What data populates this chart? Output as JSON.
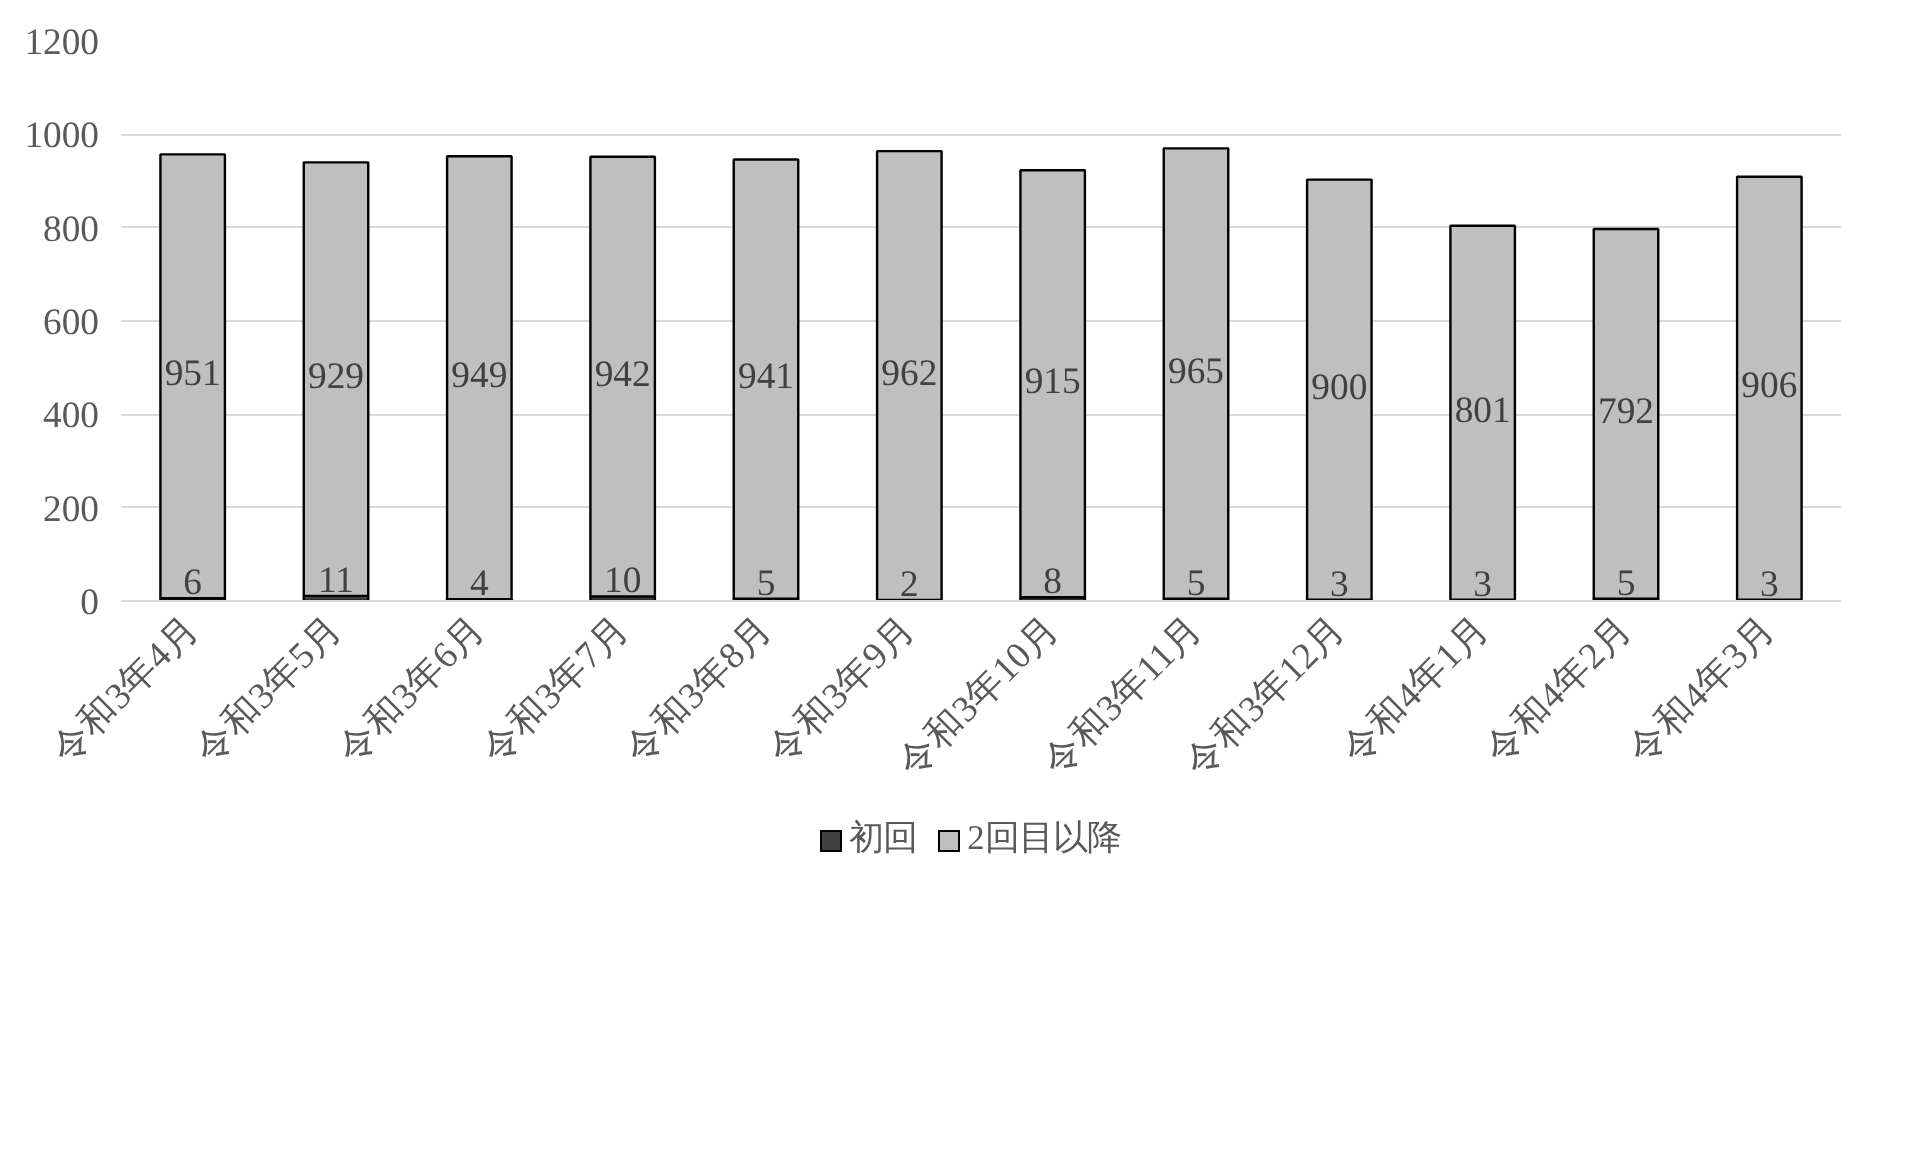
{
  "chart_data": {
    "type": "bar",
    "stacked": true,
    "categories": [
      "令和3年4月",
      "令和3年5月",
      "令和3年6月",
      "令和3年7月",
      "令和3年8月",
      "令和3年9月",
      "令和3年10月",
      "令和3年11月",
      "令和3年12月",
      "令和4年1月",
      "令和4年2月",
      "令和4年3月"
    ],
    "series": [
      {
        "name": "初回",
        "color": "#404040",
        "values": [
          6,
          11,
          4,
          10,
          5,
          2,
          8,
          5,
          3,
          3,
          5,
          3
        ]
      },
      {
        "name": "2回目以降",
        "color": "#bfbfbf",
        "values": [
          951,
          929,
          949,
          942,
          941,
          962,
          915,
          965,
          900,
          801,
          792,
          906
        ]
      }
    ],
    "ylim": [
      0,
      1200
    ],
    "yticks": [
      0,
      200,
      400,
      600,
      800,
      1000,
      1200
    ],
    "grid": "y",
    "legend": "bottom",
    "data_labels": true
  }
}
